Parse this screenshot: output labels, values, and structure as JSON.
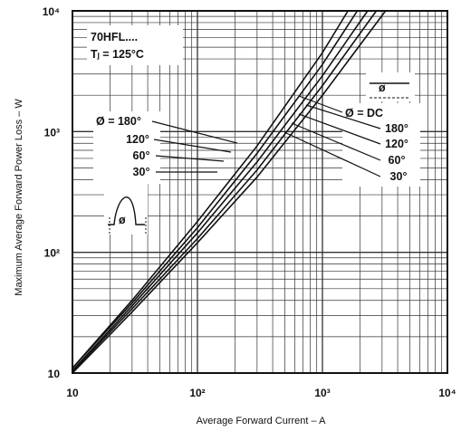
{
  "chart_data": {
    "type": "line",
    "x_scale": "log",
    "y_scale": "log",
    "xlim": [
      10,
      10000
    ],
    "ylim": [
      10,
      10000
    ],
    "xlabel": "Average Forward Current – A",
    "ylabel": "Maximum Average Forward Power Loss – W",
    "x_ticks": [
      "10",
      "10²",
      "10³",
      "10⁴"
    ],
    "y_ticks": [
      "10",
      "10²",
      "10³",
      "10⁴"
    ],
    "grid": true,
    "annotations": {
      "device": "70HFL....",
      "tj": "Tⱼ = 125°C",
      "left_title": "Ø = 180°",
      "left_labels": [
        "120°",
        "60°",
        "30°"
      ],
      "right_title": "Ø = DC",
      "right_labels": [
        "180°",
        "120°",
        "60°",
        "30°"
      ],
      "phase_symbol": "ø"
    },
    "series": [
      {
        "name": "30°",
        "x": [
          10,
          30,
          100,
          300,
          1000,
          1600
        ],
        "y": [
          11,
          40,
          180,
          760,
          4500,
          10000
        ]
      },
      {
        "name": "60°",
        "x": [
          10,
          30,
          100,
          300,
          1000,
          1900
        ],
        "y": [
          11,
          38,
          160,
          660,
          3600,
          10000
        ]
      },
      {
        "name": "120°",
        "x": [
          10,
          30,
          100,
          300,
          1000,
          2300
        ],
        "y": [
          10.5,
          36,
          145,
          560,
          2900,
          10000
        ]
      },
      {
        "name": "180°",
        "x": [
          10,
          30,
          100,
          300,
          1000,
          2700
        ],
        "y": [
          10.3,
          34,
          130,
          480,
          2400,
          10000
        ]
      },
      {
        "name": "DC",
        "x": [
          10,
          30,
          100,
          300,
          1000,
          3200
        ],
        "y": [
          10,
          32,
          120,
          420,
          2000,
          10000
        ]
      }
    ]
  }
}
